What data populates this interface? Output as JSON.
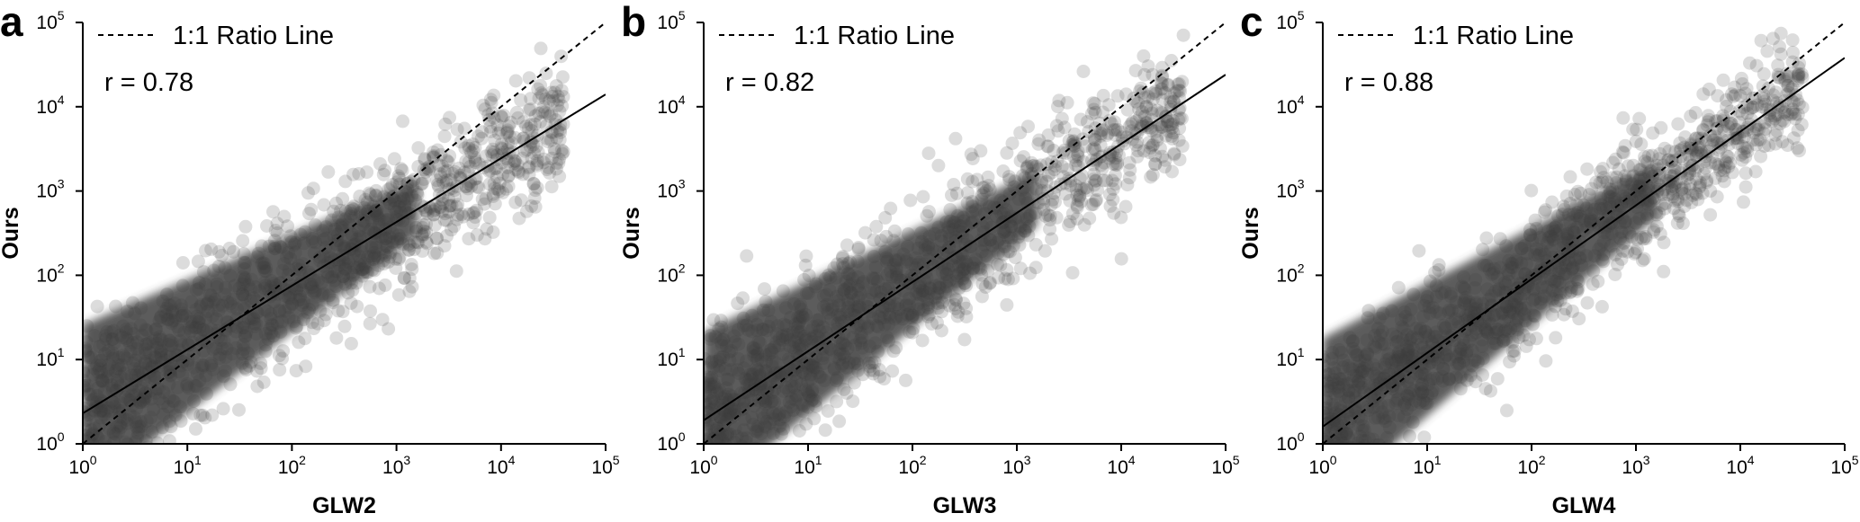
{
  "chart_data": [
    {
      "type": "scatter",
      "panel_label": "a",
      "xlabel": "GLW2",
      "ylabel": "Ours",
      "x_scale": "log",
      "y_scale": "log",
      "xlim": [
        1,
        100000
      ],
      "ylim": [
        1,
        100000
      ],
      "x_ticks": [
        {
          "base": "10",
          "exp": "0"
        },
        {
          "base": "10",
          "exp": "1"
        },
        {
          "base": "10",
          "exp": "2"
        },
        {
          "base": "10",
          "exp": "3"
        },
        {
          "base": "10",
          "exp": "4"
        },
        {
          "base": "10",
          "exp": "5"
        }
      ],
      "y_ticks": [
        {
          "base": "10",
          "exp": "0"
        },
        {
          "base": "10",
          "exp": "1"
        },
        {
          "base": "10",
          "exp": "2"
        },
        {
          "base": "10",
          "exp": "3"
        },
        {
          "base": "10",
          "exp": "4"
        },
        {
          "base": "10",
          "exp": "5"
        }
      ],
      "legend_entry": "1:1 Ratio Line",
      "annotation": "r = 0.78",
      "fit_line": {
        "x": [
          1,
          100000
        ],
        "y": [
          2.3,
          14000
        ]
      },
      "ratio_line": {
        "x": [
          1,
          100000
        ],
        "y": [
          1,
          100000
        ]
      },
      "point_color": "#3f3f3f"
    },
    {
      "type": "scatter",
      "panel_label": "b",
      "xlabel": "GLW3",
      "ylabel": "Ours",
      "x_scale": "log",
      "y_scale": "log",
      "xlim": [
        1,
        100000
      ],
      "ylim": [
        1,
        100000
      ],
      "x_ticks": [
        {
          "base": "10",
          "exp": "0"
        },
        {
          "base": "10",
          "exp": "1"
        },
        {
          "base": "10",
          "exp": "2"
        },
        {
          "base": "10",
          "exp": "3"
        },
        {
          "base": "10",
          "exp": "4"
        },
        {
          "base": "10",
          "exp": "5"
        }
      ],
      "y_ticks": [
        {
          "base": "10",
          "exp": "0"
        },
        {
          "base": "10",
          "exp": "1"
        },
        {
          "base": "10",
          "exp": "2"
        },
        {
          "base": "10",
          "exp": "3"
        },
        {
          "base": "10",
          "exp": "4"
        },
        {
          "base": "10",
          "exp": "5"
        }
      ],
      "legend_entry": "1:1 Ratio Line",
      "annotation": "r = 0.82",
      "fit_line": {
        "x": [
          1,
          100000
        ],
        "y": [
          1.9,
          24000
        ]
      },
      "ratio_line": {
        "x": [
          1,
          100000
        ],
        "y": [
          1,
          100000
        ]
      },
      "point_color": "#3f3f3f"
    },
    {
      "type": "scatter",
      "panel_label": "c",
      "xlabel": "GLW4",
      "ylabel": "Ours",
      "x_scale": "log",
      "y_scale": "log",
      "xlim": [
        1,
        100000
      ],
      "ylim": [
        1,
        100000
      ],
      "x_ticks": [
        {
          "base": "10",
          "exp": "0"
        },
        {
          "base": "10",
          "exp": "1"
        },
        {
          "base": "10",
          "exp": "2"
        },
        {
          "base": "10",
          "exp": "3"
        },
        {
          "base": "10",
          "exp": "4"
        },
        {
          "base": "10",
          "exp": "5"
        }
      ],
      "y_ticks": [
        {
          "base": "10",
          "exp": "0"
        },
        {
          "base": "10",
          "exp": "1"
        },
        {
          "base": "10",
          "exp": "2"
        },
        {
          "base": "10",
          "exp": "3"
        },
        {
          "base": "10",
          "exp": "4"
        },
        {
          "base": "10",
          "exp": "5"
        }
      ],
      "legend_entry": "1:1 Ratio Line",
      "annotation": "r = 0.88",
      "fit_line": {
        "x": [
          1,
          100000
        ],
        "y": [
          1.6,
          38000
        ]
      },
      "ratio_line": {
        "x": [
          1,
          100000
        ],
        "y": [
          1,
          100000
        ]
      },
      "point_color": "#3f3f3f"
    }
  ]
}
